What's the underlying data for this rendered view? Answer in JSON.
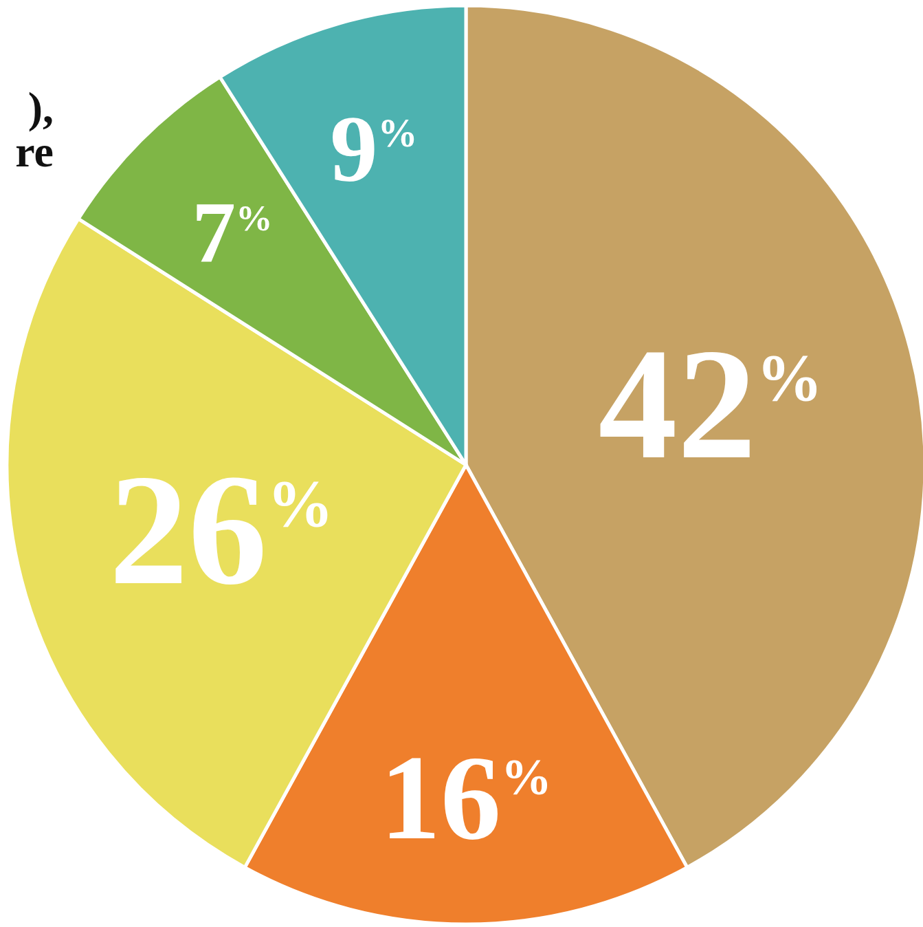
{
  "chart_data": {
    "type": "pie",
    "annotations": [
      "),",
      "re"
    ],
    "values": [
      42,
      16,
      26,
      7,
      9
    ],
    "value_labels": [
      "42%",
      "16%",
      "26%",
      "7%",
      "9%"
    ],
    "colors": [
      "#c6a264",
      "#ef7f2c",
      "#e9df5c",
      "#7fb646",
      "#4db2b0"
    ],
    "data_labels": true
  }
}
